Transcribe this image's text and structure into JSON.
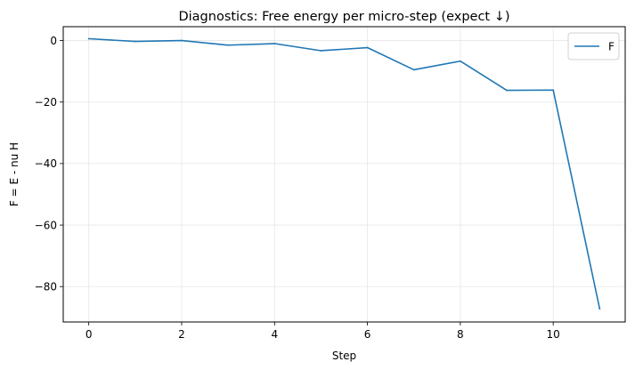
{
  "chart_data": {
    "type": "line",
    "title": "Diagnostics: Free energy per micro-step (expect ↓)",
    "xlabel": "Step",
    "ylabel": "F = E - nu H",
    "xlim": [
      -0.55,
      11.55
    ],
    "ylim": [
      -91.5,
      4.5
    ],
    "xticks": [
      0,
      2,
      4,
      6,
      8,
      10
    ],
    "yticks": [
      0,
      -20,
      -40,
      -60,
      -80
    ],
    "xtick_labels": [
      "0",
      "2",
      "4",
      "6",
      "8",
      "10"
    ],
    "ytick_labels": [
      "0",
      "−20",
      "−40",
      "−60",
      "−80"
    ],
    "grid": true,
    "legend_position": "top-right",
    "series": [
      {
        "name": "F",
        "color": "#1f77b4",
        "x": [
          0,
          1,
          2,
          3,
          4,
          5,
          6,
          7,
          8,
          9,
          10,
          11
        ],
        "y": [
          0.6,
          -0.3,
          0.0,
          -1.5,
          -1.0,
          -3.3,
          -2.3,
          -9.5,
          -6.7,
          -16.2,
          -16.1,
          -87.2
        ]
      }
    ]
  }
}
